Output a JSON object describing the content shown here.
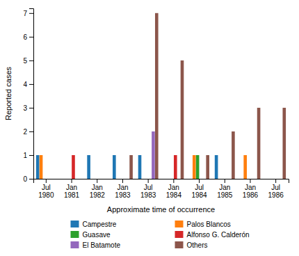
{
  "chart_data": {
    "type": "bar",
    "xlabel": "Approximate time of occurrence",
    "ylabel": "Reported cases",
    "categories": [
      "Jul\n1980",
      "Jan\n1981",
      "Jan\n1982",
      "Jan\n1983",
      "Jul\n1983",
      "Jan\n1984",
      "Jul\n1984",
      "Jan\n1985",
      "Jan\n1986",
      "Jul\n1986"
    ],
    "series": [
      {
        "name": "Campestre",
        "values": [
          1,
          0,
          1,
          1,
          1,
          0,
          0,
          1,
          0,
          0
        ]
      },
      {
        "name": "Palos Blancos",
        "values": [
          1,
          0,
          0,
          0,
          0,
          0,
          1,
          0,
          1,
          0
        ]
      },
      {
        "name": "Guasave",
        "values": [
          0,
          0,
          0,
          0,
          0,
          0,
          1,
          0,
          0,
          0
        ]
      },
      {
        "name": "Alfonso G. Calderón",
        "values": [
          0,
          1,
          0,
          0,
          0,
          1,
          0,
          0,
          0,
          0
        ]
      },
      {
        "name": "El Batamote",
        "values": [
          0,
          0,
          0,
          0,
          2,
          0,
          0,
          0,
          0,
          0
        ]
      },
      {
        "name": "Others",
        "values": [
          0,
          0,
          0,
          1,
          7,
          5,
          1,
          2,
          3,
          3
        ]
      }
    ],
    "ylim": [
      0,
      7.2
    ],
    "yticks": [
      0,
      1,
      2,
      3,
      4,
      5,
      6,
      7
    ],
    "grid": false,
    "legend": "bottom"
  }
}
